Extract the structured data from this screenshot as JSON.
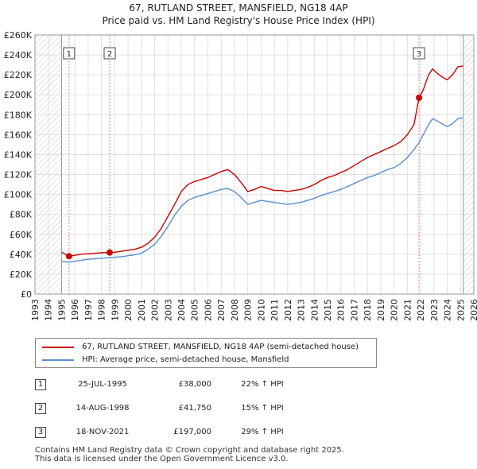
{
  "chart_data": {
    "type": "line",
    "title": "67, RUTLAND STREET, MANSFIELD, NG18 4AP",
    "subtitle": "Price paid vs. HM Land Registry's House Price Index (HPI)",
    "xlim": [
      1993,
      2026
    ],
    "ylim": [
      0,
      260000
    ],
    "x_ticks": [
      1993,
      1994,
      1995,
      1996,
      1997,
      1998,
      1999,
      2000,
      2001,
      2002,
      2003,
      2004,
      2005,
      2006,
      2007,
      2008,
      2009,
      2010,
      2011,
      2012,
      2013,
      2014,
      2015,
      2016,
      2017,
      2018,
      2019,
      2020,
      2021,
      2022,
      2023,
      2024,
      2025,
      2026
    ],
    "y_ticks": [
      0,
      20000,
      40000,
      60000,
      80000,
      100000,
      120000,
      140000,
      160000,
      180000,
      200000,
      220000,
      240000,
      260000
    ],
    "y_tick_labels": [
      "£0",
      "£20K",
      "£40K",
      "£60K",
      "£80K",
      "£100K",
      "£120K",
      "£140K",
      "£160K",
      "£180K",
      "£200K",
      "£220K",
      "£240K",
      "£260K"
    ],
    "grid": true,
    "hatched_ranges": [
      [
        1993,
        1995.0
      ],
      [
        2025.2,
        2026
      ]
    ],
    "colors": {
      "property": "#cc0000",
      "hpi": "#5b8fcc",
      "sale_vline": "#e08080",
      "sale_point": "#cc0000"
    },
    "series": [
      {
        "name": "67, RUTLAND STREET, MANSFIELD, NG18 4AP (semi-detached house)",
        "color": "#cc0000",
        "points": [
          [
            1995.0,
            42000
          ],
          [
            1995.56,
            38000
          ],
          [
            1996.0,
            39000
          ],
          [
            1996.5,
            40000
          ],
          [
            1997.0,
            40500
          ],
          [
            1997.5,
            41000
          ],
          [
            1998.0,
            41500
          ],
          [
            1998.62,
            41750
          ],
          [
            1999.0,
            42000
          ],
          [
            1999.5,
            43000
          ],
          [
            2000.0,
            44000
          ],
          [
            2000.5,
            45000
          ],
          [
            2001.0,
            47000
          ],
          [
            2001.5,
            51000
          ],
          [
            2002.0,
            57000
          ],
          [
            2002.5,
            66000
          ],
          [
            2003.0,
            78000
          ],
          [
            2003.5,
            90000
          ],
          [
            2004.0,
            103000
          ],
          [
            2004.5,
            110000
          ],
          [
            2005.0,
            113000
          ],
          [
            2005.5,
            115000
          ],
          [
            2006.0,
            117000
          ],
          [
            2006.5,
            120000
          ],
          [
            2007.0,
            123000
          ],
          [
            2007.5,
            125000
          ],
          [
            2008.0,
            120000
          ],
          [
            2008.5,
            112000
          ],
          [
            2009.0,
            103000
          ],
          [
            2009.5,
            105000
          ],
          [
            2010.0,
            108000
          ],
          [
            2010.5,
            106000
          ],
          [
            2011.0,
            104000
          ],
          [
            2011.5,
            104000
          ],
          [
            2012.0,
            103000
          ],
          [
            2012.5,
            104000
          ],
          [
            2013.0,
            105000
          ],
          [
            2013.5,
            107000
          ],
          [
            2014.0,
            110000
          ],
          [
            2014.5,
            114000
          ],
          [
            2015.0,
            117000
          ],
          [
            2015.5,
            119000
          ],
          [
            2016.0,
            122000
          ],
          [
            2016.5,
            125000
          ],
          [
            2017.0,
            129000
          ],
          [
            2017.5,
            133000
          ],
          [
            2018.0,
            137000
          ],
          [
            2018.5,
            140000
          ],
          [
            2019.0,
            143000
          ],
          [
            2019.5,
            146000
          ],
          [
            2020.0,
            149000
          ],
          [
            2020.5,
            153000
          ],
          [
            2021.0,
            160000
          ],
          [
            2021.5,
            170000
          ],
          [
            2021.88,
            197000
          ],
          [
            2022.2,
            205000
          ],
          [
            2022.6,
            220000
          ],
          [
            2022.9,
            226000
          ],
          [
            2023.2,
            222000
          ],
          [
            2023.6,
            218000
          ],
          [
            2024.0,
            215000
          ],
          [
            2024.4,
            220000
          ],
          [
            2024.8,
            228000
          ],
          [
            2025.2,
            229000
          ]
        ]
      },
      {
        "name": "HPI: Average price, semi-detached house, Mansfield",
        "color": "#5b8fcc",
        "points": [
          [
            1995.0,
            33000
          ],
          [
            1995.5,
            32000
          ],
          [
            1996.0,
            33000
          ],
          [
            1996.5,
            34000
          ],
          [
            1997.0,
            35000
          ],
          [
            1997.5,
            35500
          ],
          [
            1998.0,
            36000
          ],
          [
            1998.5,
            36500
          ],
          [
            1999.0,
            37000
          ],
          [
            1999.5,
            37500
          ],
          [
            2000.0,
            38500
          ],
          [
            2000.5,
            39500
          ],
          [
            2001.0,
            41000
          ],
          [
            2001.5,
            45000
          ],
          [
            2002.0,
            50000
          ],
          [
            2002.5,
            58000
          ],
          [
            2003.0,
            68000
          ],
          [
            2003.5,
            79000
          ],
          [
            2004.0,
            88000
          ],
          [
            2004.5,
            94000
          ],
          [
            2005.0,
            97000
          ],
          [
            2005.5,
            99000
          ],
          [
            2006.0,
            101000
          ],
          [
            2006.5,
            103000
          ],
          [
            2007.0,
            105000
          ],
          [
            2007.5,
            106000
          ],
          [
            2008.0,
            103000
          ],
          [
            2008.5,
            97000
          ],
          [
            2009.0,
            90000
          ],
          [
            2009.5,
            92000
          ],
          [
            2010.0,
            94000
          ],
          [
            2010.5,
            93000
          ],
          [
            2011.0,
            92000
          ],
          [
            2011.5,
            91000
          ],
          [
            2012.0,
            90000
          ],
          [
            2012.5,
            91000
          ],
          [
            2013.0,
            92000
          ],
          [
            2013.5,
            94000
          ],
          [
            2014.0,
            96000
          ],
          [
            2014.5,
            99000
          ],
          [
            2015.0,
            101000
          ],
          [
            2015.5,
            103000
          ],
          [
            2016.0,
            105000
          ],
          [
            2016.5,
            108000
          ],
          [
            2017.0,
            111000
          ],
          [
            2017.5,
            114000
          ],
          [
            2018.0,
            117000
          ],
          [
            2018.5,
            119000
          ],
          [
            2019.0,
            122000
          ],
          [
            2019.5,
            125000
          ],
          [
            2020.0,
            127000
          ],
          [
            2020.5,
            131000
          ],
          [
            2021.0,
            137000
          ],
          [
            2021.5,
            145000
          ],
          [
            2021.88,
            152000
          ],
          [
            2022.2,
            160000
          ],
          [
            2022.6,
            170000
          ],
          [
            2022.9,
            176000
          ],
          [
            2023.2,
            174000
          ],
          [
            2023.6,
            171000
          ],
          [
            2024.0,
            168000
          ],
          [
            2024.4,
            171000
          ],
          [
            2024.8,
            176000
          ],
          [
            2025.2,
            177000
          ]
        ]
      }
    ],
    "sales": [
      {
        "num": "1",
        "x": 1995.56,
        "y": 38000
      },
      {
        "num": "2",
        "x": 1998.62,
        "y": 41750
      },
      {
        "num": "3",
        "x": 2021.88,
        "y": 197000
      }
    ]
  },
  "legend": {
    "property_label": "67, RUTLAND STREET, MANSFIELD, NG18 4AP (semi-detached house)",
    "hpi_label": "HPI: Average price, semi-detached house, Mansfield"
  },
  "sales_table": [
    {
      "num": "1",
      "date": "25-JUL-1995",
      "price": "£38,000",
      "hpi": "22% ↑ HPI"
    },
    {
      "num": "2",
      "date": "14-AUG-1998",
      "price": "£41,750",
      "hpi": "15% ↑ HPI"
    },
    {
      "num": "3",
      "date": "18-NOV-2021",
      "price": "£197,000",
      "hpi": "29% ↑ HPI"
    }
  ],
  "footer": {
    "line1": "Contains HM Land Registry data © Crown copyright and database right 2025.",
    "line2": "This data is licensed under the Open Government Licence v3.0."
  }
}
